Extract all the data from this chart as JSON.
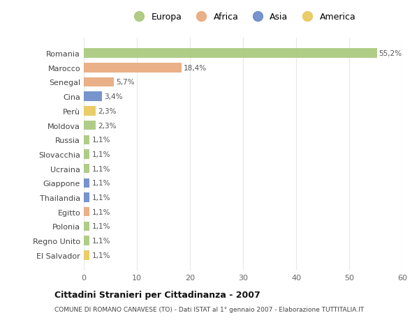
{
  "countries": [
    "Romania",
    "Marocco",
    "Senegal",
    "Cina",
    "Perù",
    "Moldova",
    "Russia",
    "Slovacchia",
    "Ucraina",
    "Giappone",
    "Thailandia",
    "Egitto",
    "Polonia",
    "Regno Unito",
    "El Salvador"
  ],
  "values": [
    55.2,
    18.4,
    5.7,
    3.4,
    2.3,
    2.3,
    1.1,
    1.1,
    1.1,
    1.1,
    1.1,
    1.1,
    1.1,
    1.1,
    1.1
  ],
  "labels": [
    "55,2%",
    "18,4%",
    "5,7%",
    "3,4%",
    "2,3%",
    "2,3%",
    "1,1%",
    "1,1%",
    "1,1%",
    "1,1%",
    "1,1%",
    "1,1%",
    "1,1%",
    "1,1%",
    "1,1%"
  ],
  "continents": [
    "Europa",
    "Africa",
    "Africa",
    "Asia",
    "America",
    "Europa",
    "Europa",
    "Europa",
    "Europa",
    "Asia",
    "Asia",
    "Africa",
    "Europa",
    "Europa",
    "America"
  ],
  "colors": {
    "Europa": "#a8c87a",
    "Africa": "#e8a87a",
    "Asia": "#6888c8",
    "America": "#e8c858"
  },
  "legend_order": [
    "Europa",
    "Africa",
    "Asia",
    "America"
  ],
  "title": "Cittadini Stranieri per Cittadinanza - 2007",
  "subtitle": "COMUNE DI ROMANO CANAVESE (TO) - Dati ISTAT al 1° gennaio 2007 - Elaborazione TUTTITALIA.IT",
  "xlim": [
    0,
    60
  ],
  "xticks": [
    0,
    10,
    20,
    30,
    40,
    50,
    60
  ],
  "bg_color": "#ffffff",
  "grid_color": "#e8e8e8"
}
